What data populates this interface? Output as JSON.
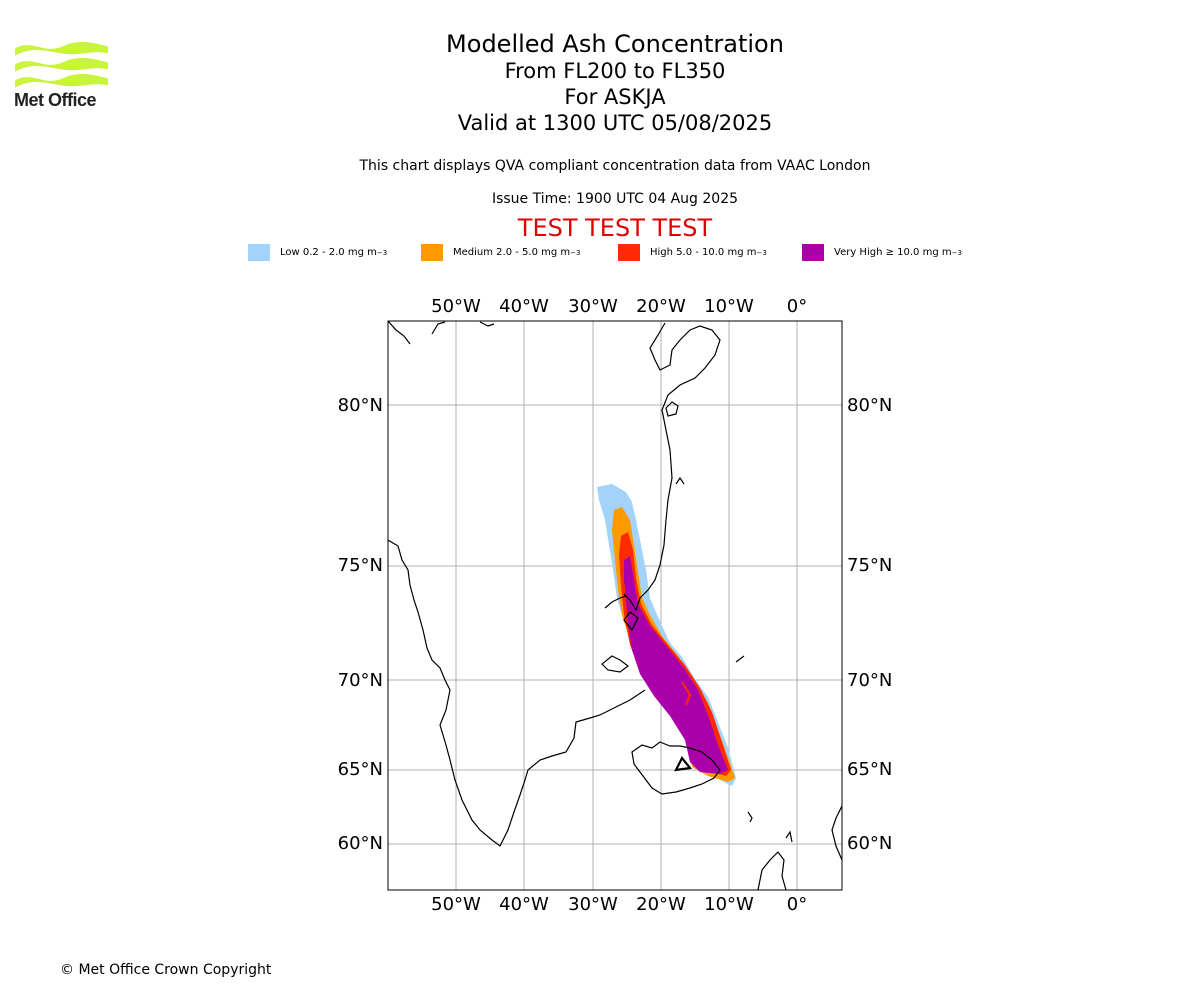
{
  "branding": {
    "logo_text": "Met Office",
    "logo_color": "#c8f53c"
  },
  "header": {
    "title": "Modelled Ash Concentration",
    "levels": "From FL200 to FL350",
    "volcano": "For ASKJA",
    "valid_time": "Valid at 1300 UTC 05/08/2025",
    "description": "This chart displays QVA compliant concentration data from VAAC London",
    "issue_time": "Issue Time: 1900 UTC 04 Aug 2025",
    "test_banner": "TEST TEST TEST",
    "test_color": "#e00000"
  },
  "legend": [
    {
      "label": "Low 0.2 - 2.0 mg m",
      "unit_exp": "−3",
      "color": "#a3d3fb"
    },
    {
      "label": "Medium 2.0 - 5.0 mg m",
      "unit_exp": "−3",
      "color": "#ff9900"
    },
    {
      "label": "High 5.0 - 10.0 mg m",
      "unit_exp": "−3",
      "color": "#ff2a00"
    },
    {
      "label": "Very High  ≥  10.0 mg m",
      "unit_exp": "−3",
      "color": "#aa00aa"
    }
  ],
  "map": {
    "lon_labels": [
      "50°W",
      "40°W",
      "30°W",
      "20°W",
      "10°W",
      "0°"
    ],
    "lat_labels": [
      "80°N",
      "75°N",
      "70°N",
      "65°N",
      "60°N"
    ],
    "grid_color": "#b0b0b0",
    "coast_color": "#000000"
  },
  "footer": {
    "copyright": "© Met Office Crown Copyright"
  }
}
